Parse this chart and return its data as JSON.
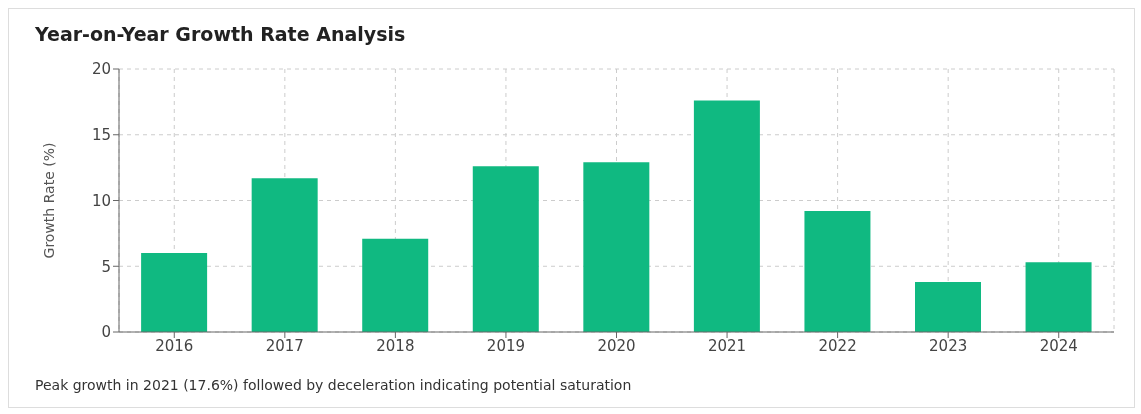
{
  "chart_data": {
    "type": "bar",
    "title": "Year-on-Year Growth Rate Analysis",
    "ylabel": "Growth Rate (%)",
    "categories": [
      "2016",
      "2017",
      "2018",
      "2019",
      "2020",
      "2021",
      "2022",
      "2023",
      "2024"
    ],
    "values": [
      6.0,
      11.7,
      7.1,
      12.6,
      12.9,
      17.6,
      9.2,
      3.8,
      5.3
    ],
    "color": "#10b981",
    "ylim": [
      0,
      20
    ],
    "yticks": [
      0,
      5,
      10,
      15,
      20
    ],
    "grid": true,
    "annotations": [
      "Peak growth in 2021 (17.6%) followed by deceleration indicating potential saturation"
    ]
  }
}
